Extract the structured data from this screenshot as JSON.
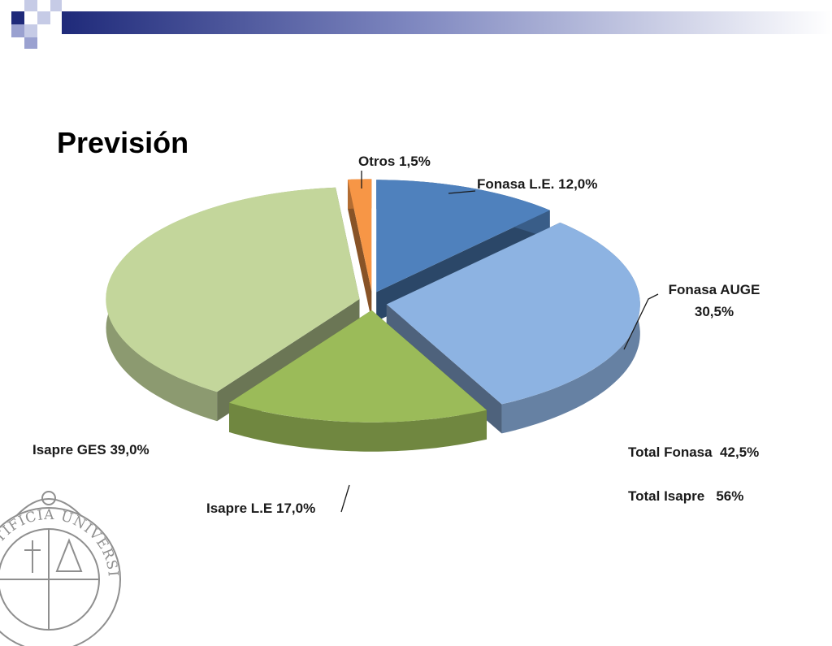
{
  "slide": {
    "title": "Previsión",
    "notes": [
      "Total Fonasa  42,5%",
      "Total Isapre   56%"
    ]
  },
  "seal": {
    "text": "PONTIFICIA UNIVERSIDAD CATOLICA"
  },
  "colors": {
    "header_dark": "#1f2a7a",
    "header_mid": "#7d86bf",
    "header_light": "#c6cbe6"
  },
  "chart_data": {
    "type": "pie",
    "title": "",
    "slices": [
      {
        "label": "Fonasa L.E.",
        "value_label": "12,0%",
        "value": 12.0,
        "color": "#4f81bd"
      },
      {
        "label": "Fonasa AUGE",
        "value_label": "30,5%",
        "value": 30.5,
        "color": "#8db3e2"
      },
      {
        "label": "Isapre  L.E",
        "value_label": "17,0%",
        "value": 17.0,
        "color": "#9bbb59"
      },
      {
        "label": "Isapre GES",
        "value_label": "39,0%",
        "value": 39.0,
        "color": "#c3d69b"
      },
      {
        "label": "Otros",
        "value_label": "1,5%",
        "value": 1.5,
        "color": "#f79646"
      }
    ]
  }
}
